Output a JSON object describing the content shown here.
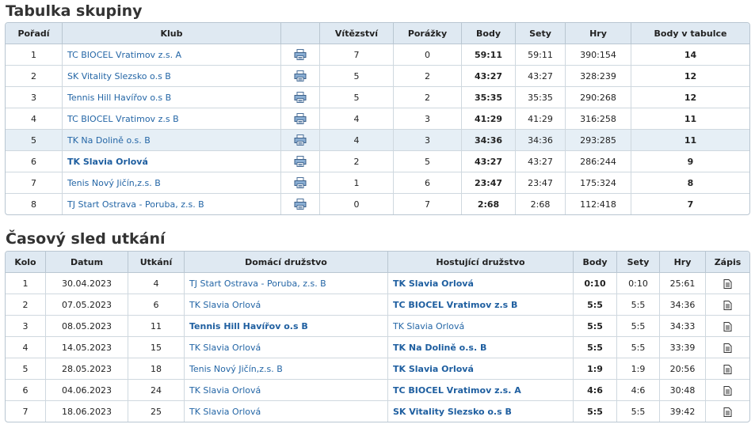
{
  "standings": {
    "title": "Tabulka skupiny",
    "headers": [
      "Pořadí",
      "Klub",
      "",
      "Vítězství",
      "Porážky",
      "Body",
      "Sety",
      "Hry",
      "Body v tabulce"
    ],
    "rows": [
      {
        "rank": "1",
        "club": "TC BIOCEL Vratimov z.s. A",
        "wins": "7",
        "losses": "0",
        "body": "59:11",
        "sety": "59:11",
        "hry": "390:154",
        "points": "14"
      },
      {
        "rank": "2",
        "club": "SK Vitality Slezsko o.s B",
        "wins": "5",
        "losses": "2",
        "body": "43:27",
        "sety": "43:27",
        "hry": "328:239",
        "points": "12"
      },
      {
        "rank": "3",
        "club": "Tennis Hill Havířov o.s B",
        "wins": "5",
        "losses": "2",
        "body": "35:35",
        "sety": "35:35",
        "hry": "290:268",
        "points": "12"
      },
      {
        "rank": "4",
        "club": "TC BIOCEL Vratimov z.s B",
        "wins": "4",
        "losses": "3",
        "body": "41:29",
        "sety": "41:29",
        "hry": "316:258",
        "points": "11"
      },
      {
        "rank": "5",
        "club": "TK Na Dolině o.s. B",
        "wins": "4",
        "losses": "3",
        "body": "34:36",
        "sety": "34:36",
        "hry": "293:285",
        "points": "11"
      },
      {
        "rank": "6",
        "club": "TK Slavia Orlová",
        "wins": "2",
        "losses": "5",
        "body": "43:27",
        "sety": "43:27",
        "hry": "286:244",
        "points": "9"
      },
      {
        "rank": "7",
        "club": "Tenis Nový Jičín,z.s. B",
        "wins": "1",
        "losses": "6",
        "body": "23:47",
        "sety": "23:47",
        "hry": "175:324",
        "points": "8"
      },
      {
        "rank": "8",
        "club": "TJ Start Ostrava - Poruba, z.s. B",
        "wins": "0",
        "losses": "7",
        "body": "2:68",
        "sety": "2:68",
        "hry": "112:418",
        "points": "7"
      }
    ]
  },
  "schedule": {
    "title": "Časový sled utkání",
    "headers": [
      "Kolo",
      "Datum",
      "Utkání",
      "Domácí družstvo",
      "Hostující družstvo",
      "Body",
      "Sety",
      "Hry",
      "Zápis"
    ],
    "rows": [
      {
        "round": "1",
        "date": "30.04.2023",
        "match": "4",
        "home": "TJ Start Ostrava - Poruba, z.s. B",
        "away": "TK Slavia Orlová",
        "body": "0:10",
        "sety": "0:10",
        "hry": "25:61"
      },
      {
        "round": "2",
        "date": "07.05.2023",
        "match": "6",
        "home": "TK Slavia Orlová",
        "away": "TC BIOCEL Vratimov z.s B",
        "body": "5:5",
        "sety": "5:5",
        "hry": "34:36"
      },
      {
        "round": "3",
        "date": "08.05.2023",
        "match": "11",
        "home": "Tennis Hill Havířov o.s B",
        "away": "TK Slavia Orlová",
        "body": "5:5",
        "sety": "5:5",
        "hry": "34:33"
      },
      {
        "round": "4",
        "date": "14.05.2023",
        "match": "15",
        "home": "TK Slavia Orlová",
        "away": "TK Na Dolině o.s. B",
        "body": "5:5",
        "sety": "5:5",
        "hry": "33:39"
      },
      {
        "round": "5",
        "date": "28.05.2023",
        "match": "18",
        "home": "Tenis Nový Jičín,z.s. B",
        "away": "TK Slavia Orlová",
        "body": "1:9",
        "sety": "1:9",
        "hry": "20:56"
      },
      {
        "round": "6",
        "date": "04.06.2023",
        "match": "24",
        "home": "TK Slavia Orlová",
        "away": "TC BIOCEL Vratimov z.s. A",
        "body": "4:6",
        "sety": "4:6",
        "hry": "30:48"
      },
      {
        "round": "7",
        "date": "18.06.2023",
        "match": "25",
        "home": "TK Slavia Orlová",
        "away": "SK Vitality Slezsko o.s B",
        "body": "5:5",
        "sety": "5:5",
        "hry": "39:42"
      }
    ]
  },
  "colors": {
    "link": "#2466a6",
    "header_bg": "#dfe9f2",
    "highlight_row": "#e6eff6",
    "border": "#b9c6d1"
  },
  "icons": {
    "standings_row_action": "printer-icon",
    "schedule_row_action": "document-icon"
  }
}
